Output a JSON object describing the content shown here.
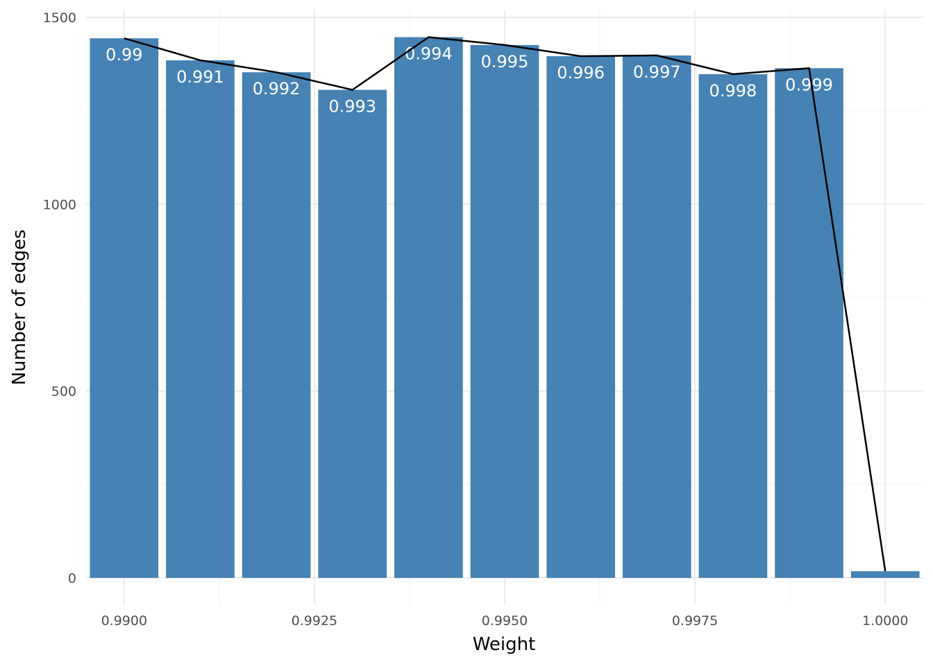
{
  "chart_data": {
    "type": "bar",
    "xlabel": "Weight",
    "ylabel": "Number of edges",
    "xlim": [
      0.9895,
      1.0005
    ],
    "ylim": [
      0,
      1500
    ],
    "x_ticks": [
      "0.9900",
      "0.9925",
      "0.9950",
      "0.9975",
      "1.0000"
    ],
    "y_ticks": [
      "0",
      "500",
      "1000",
      "1500"
    ],
    "grid": true,
    "bar_color": "#4682b4",
    "line_color": "#000000",
    "x": [
      0.99,
      0.991,
      0.992,
      0.993,
      0.994,
      0.995,
      0.996,
      0.997,
      0.998,
      0.999,
      1.0
    ],
    "values": [
      1444,
      1385,
      1353,
      1306,
      1447,
      1426,
      1396,
      1398,
      1348,
      1364,
      18
    ],
    "bar_labels": [
      "0.99",
      "0.991",
      "0.992",
      "0.993",
      "0.994",
      "0.995",
      "0.996",
      "0.997",
      "0.998",
      "0.999",
      ""
    ],
    "line_values": [
      1444,
      1385,
      1353,
      1306,
      1447,
      1426,
      1396,
      1398,
      1348,
      1364,
      18
    ]
  }
}
